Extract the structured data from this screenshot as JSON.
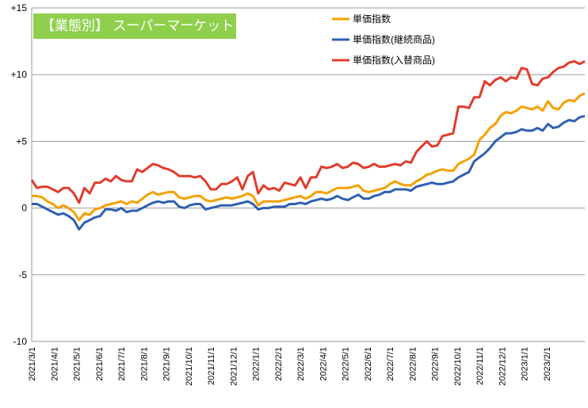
{
  "chart_data": {
    "type": "line",
    "title": "【業態別】 スーパーマーケット",
    "xlabel": "",
    "ylabel": "",
    "ylim": [
      -10,
      15
    ],
    "yticks": [
      15,
      10,
      5,
      0,
      -5,
      -10
    ],
    "ytick_labels": [
      "+15",
      "+10",
      "+5",
      "0",
      "-5",
      "-10"
    ],
    "xticks": [
      "2021/3/1",
      "2021/4/1",
      "2021/5/1",
      "2021/6/1",
      "2021/7/1",
      "2021/8/1",
      "2021/9/1",
      "2021/10/1",
      "2021/11/1",
      "2021/12/1",
      "2022/1/1",
      "2022/2/1",
      "2022/3/1",
      "2022/4/1",
      "2022/5/1",
      "2022/6/1",
      "2022/7/1",
      "2022/8/1",
      "2022/9/1",
      "2022/10/1",
      "2022/11/1",
      "2022/12/1",
      "2023/1/1",
      "2023/2/1"
    ],
    "grid": true,
    "legend_position": "top-right",
    "series": [
      {
        "name": "単価指数",
        "color": "#f5a000",
        "values": [
          0.9,
          0.9,
          0.8,
          0.5,
          0.3,
          0.0,
          0.2,
          0.0,
          -0.3,
          -0.9,
          -0.4,
          -0.5,
          -0.1,
          0.0,
          0.2,
          0.3,
          0.4,
          0.5,
          0.3,
          0.5,
          0.4,
          0.7,
          1.0,
          1.2,
          1.0,
          1.1,
          1.2,
          1.2,
          0.8,
          0.7,
          0.8,
          0.9,
          0.9,
          0.6,
          0.5,
          0.6,
          0.7,
          0.8,
          0.7,
          0.8,
          0.9,
          1.1,
          0.9,
          0.2,
          0.5,
          0.5,
          0.5,
          0.5,
          0.6,
          0.7,
          0.8,
          0.9,
          0.7,
          0.9,
          1.2,
          1.2,
          1.1,
          1.3,
          1.5,
          1.5,
          1.5,
          1.6,
          1.7,
          1.3,
          1.2,
          1.3,
          1.4,
          1.5,
          1.8,
          2.0,
          1.8,
          1.7,
          1.7,
          2.0,
          2.2,
          2.5,
          2.6,
          2.8,
          2.9,
          2.8,
          2.8,
          3.3,
          3.5,
          3.7,
          4.0,
          5.1,
          5.5,
          6.0,
          6.3,
          6.9,
          7.2,
          7.1,
          7.3,
          7.6,
          7.5,
          7.4,
          7.6,
          7.3,
          8.0,
          7.5,
          7.4,
          7.9,
          8.1,
          8.0,
          8.4,
          8.6
        ]
      },
      {
        "name": "単価指数(継続商品)",
        "color": "#2f5fb3",
        "values": [
          0.3,
          0.3,
          0.1,
          -0.1,
          -0.3,
          -0.5,
          -0.4,
          -0.6,
          -0.9,
          -1.6,
          -1.1,
          -0.9,
          -0.7,
          -0.6,
          -0.1,
          -0.1,
          -0.2,
          0.0,
          -0.3,
          -0.2,
          -0.2,
          0.0,
          0.2,
          0.4,
          0.5,
          0.4,
          0.5,
          0.5,
          0.1,
          0.0,
          0.2,
          0.3,
          0.3,
          -0.1,
          0.0,
          0.1,
          0.2,
          0.2,
          0.2,
          0.3,
          0.4,
          0.5,
          0.3,
          -0.1,
          0.0,
          0.0,
          0.1,
          0.1,
          0.1,
          0.3,
          0.3,
          0.4,
          0.3,
          0.5,
          0.6,
          0.7,
          0.6,
          0.7,
          0.9,
          0.7,
          0.6,
          0.8,
          1.0,
          0.7,
          0.7,
          0.9,
          1.0,
          1.2,
          1.2,
          1.4,
          1.4,
          1.4,
          1.3,
          1.6,
          1.7,
          1.8,
          1.9,
          1.8,
          1.8,
          1.9,
          2.0,
          2.3,
          2.5,
          2.7,
          3.5,
          3.8,
          4.1,
          4.5,
          5.0,
          5.3,
          5.6,
          5.6,
          5.7,
          5.9,
          5.8,
          5.8,
          6.0,
          5.8,
          6.3,
          6.0,
          6.1,
          6.4,
          6.6,
          6.5,
          6.8,
          6.9
        ]
      },
      {
        "name": "単価指数(入替商品)",
        "color": "#e03c2c",
        "values": [
          2.1,
          1.5,
          1.6,
          1.6,
          1.4,
          1.2,
          1.5,
          1.5,
          1.1,
          0.4,
          1.5,
          1.1,
          1.9,
          1.9,
          2.2,
          2.0,
          2.4,
          2.1,
          2.0,
          2.0,
          2.9,
          2.7,
          3.0,
          3.3,
          3.2,
          3.0,
          2.9,
          2.7,
          2.4,
          2.4,
          2.4,
          2.3,
          2.4,
          2.0,
          1.4,
          1.4,
          1.8,
          1.8,
          2.0,
          2.3,
          1.4,
          2.4,
          2.7,
          1.1,
          1.7,
          1.4,
          1.5,
          1.3,
          1.9,
          1.8,
          1.7,
          2.3,
          1.5,
          2.3,
          2.3,
          3.1,
          3.0,
          3.1,
          3.3,
          3.0,
          3.1,
          3.4,
          3.3,
          3.0,
          3.1,
          3.3,
          3.1,
          3.1,
          3.2,
          3.3,
          3.2,
          3.5,
          3.4,
          4.2,
          4.6,
          5.0,
          4.6,
          4.7,
          5.4,
          5.5,
          5.6,
          7.6,
          7.6,
          7.5,
          8.3,
          8.3,
          9.5,
          9.2,
          9.6,
          9.8,
          9.5,
          9.8,
          9.7,
          10.5,
          10.4,
          9.3,
          9.2,
          9.7,
          9.8,
          10.2,
          10.5,
          10.6,
          10.9,
          11.0,
          10.8,
          11.0
        ]
      }
    ]
  }
}
